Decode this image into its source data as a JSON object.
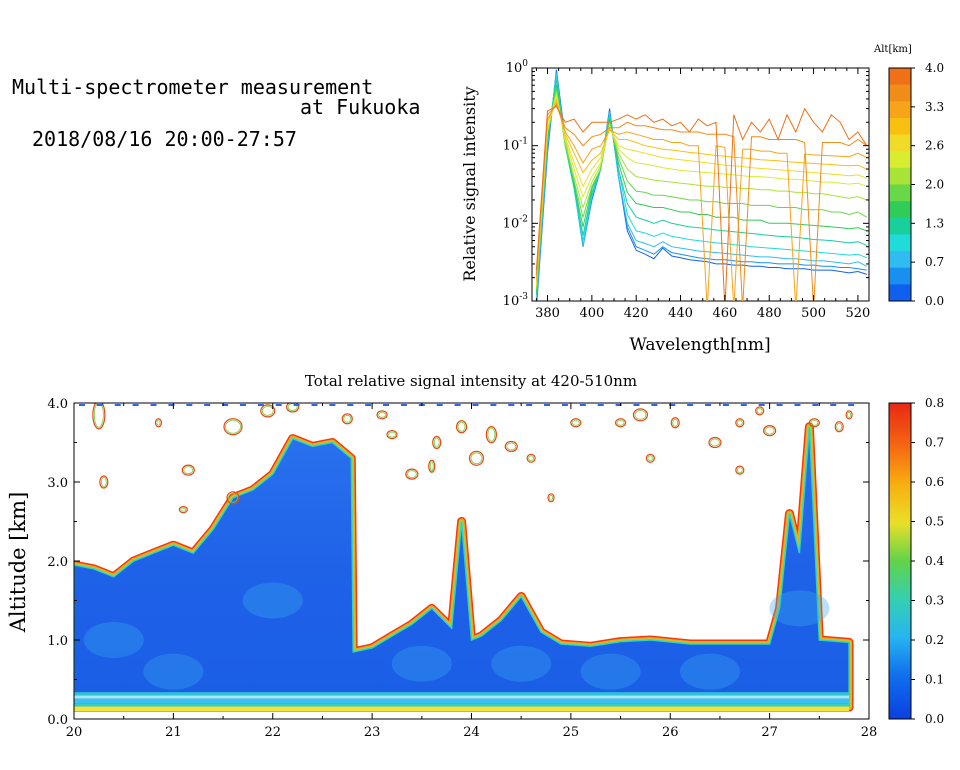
{
  "header": {
    "title_line1": "Multi-spectrometer measurement",
    "title_line2": "at Fukuoka",
    "date_range": "2018/08/16 20:00-27:57"
  },
  "chart_data": [
    {
      "type": "line",
      "title": "",
      "xlabel": "Wavelength[nm]",
      "ylabel": "Relative signal intensity",
      "xlim": [
        373,
        525
      ],
      "ylim": [
        0.001,
        1
      ],
      "yscale": "log",
      "x_ticks": [
        "380",
        "400",
        "420",
        "440",
        "460",
        "480",
        "500",
        "520"
      ],
      "x_tick_values": [
        380,
        400,
        420,
        440,
        460,
        480,
        500,
        520
      ],
      "y_ticks": [
        {
          "mantissa": "10",
          "exp": "-3",
          "value": 0.001
        },
        {
          "mantissa": "10",
          "exp": "-2",
          "value": 0.01
        },
        {
          "mantissa": "10",
          "exp": "-1",
          "value": 0.1
        },
        {
          "mantissa": "10",
          "exp": "0",
          "value": 1
        }
      ],
      "colorbar": {
        "title": "Alt[km]",
        "labels": [
          "4.0",
          "3.3",
          "2.6",
          "2.0",
          "1.3",
          "0.7",
          "0.0"
        ],
        "colors": [
          "#f07018",
          "#f08c18",
          "#f8a418",
          "#f8c010",
          "#f0dc28",
          "#d8ec30",
          "#a8e438",
          "#68d848",
          "#30cc58",
          "#18d09c",
          "#20dcd8",
          "#30bcf0",
          "#1890f0",
          "#1060f0"
        ]
      },
      "x": [
        375,
        380,
        384,
        388,
        392,
        396,
        400,
        404,
        408,
        412,
        416,
        420,
        424,
        428,
        432,
        436,
        440,
        444,
        448,
        452,
        456,
        460,
        464,
        468,
        472,
        476,
        480,
        484,
        488,
        492,
        496,
        500,
        504,
        508,
        512,
        516,
        520,
        524
      ],
      "series": [
        {
          "altitude": 0.2,
          "color": "#1060f0",
          "values": [
            0.0008,
            0.08,
            0.95,
            0.12,
            0.03,
            0.005,
            0.02,
            0.05,
            0.3,
            0.04,
            0.008,
            0.0045,
            0.004,
            0.0035,
            0.0048,
            0.0038,
            0.0036,
            0.0034,
            0.0033,
            0.0032,
            0.003,
            0.003,
            0.0029,
            0.0029,
            0.0028,
            0.0028,
            0.0027,
            0.0027,
            0.0026,
            0.0026,
            0.0026,
            0.0025,
            0.0025,
            0.0025,
            0.0024,
            0.0023,
            0.0024,
            0.0022
          ]
        },
        {
          "altitude": 0.5,
          "color": "#1890f0",
          "values": [
            0.0009,
            0.09,
            0.9,
            0.11,
            0.03,
            0.005,
            0.021,
            0.05,
            0.28,
            0.04,
            0.009,
            0.005,
            0.0045,
            0.004,
            0.005,
            0.0042,
            0.004,
            0.0038,
            0.0036,
            0.0035,
            0.0034,
            0.0034,
            0.0033,
            0.0032,
            0.0032,
            0.0031,
            0.0031,
            0.003,
            0.003,
            0.003,
            0.0029,
            0.0029,
            0.0028,
            0.0028,
            0.0027,
            0.0027,
            0.0026,
            0.0025
          ]
        },
        {
          "altitude": 0.8,
          "color": "#30bcf0",
          "values": [
            0.001,
            0.1,
            0.85,
            0.1,
            0.028,
            0.005,
            0.022,
            0.05,
            0.27,
            0.04,
            0.01,
            0.006,
            0.0055,
            0.005,
            0.0058,
            0.005,
            0.0048,
            0.0046,
            0.0044,
            0.0043,
            0.0042,
            0.0041,
            0.004,
            0.0039,
            0.0038,
            0.0037,
            0.0037,
            0.0036,
            0.0035,
            0.0035,
            0.0034,
            0.0033,
            0.0033,
            0.0032,
            0.0031,
            0.003,
            0.0032,
            0.0028
          ]
        },
        {
          "altitude": 1.1,
          "color": "#20dcd8",
          "values": [
            0.001,
            0.11,
            0.8,
            0.1,
            0.028,
            0.006,
            0.023,
            0.05,
            0.26,
            0.05,
            0.013,
            0.008,
            0.0075,
            0.0068,
            0.0075,
            0.0068,
            0.0065,
            0.0062,
            0.006,
            0.0058,
            0.0056,
            0.0055,
            0.0053,
            0.0052,
            0.005,
            0.0049,
            0.0048,
            0.0047,
            0.0046,
            0.0045,
            0.0044,
            0.0043,
            0.0042,
            0.0041,
            0.004,
            0.0039,
            0.004,
            0.0036
          ]
        },
        {
          "altitude": 1.4,
          "color": "#18d09c",
          "values": [
            0.0012,
            0.12,
            0.7,
            0.1,
            0.03,
            0.007,
            0.025,
            0.05,
            0.24,
            0.05,
            0.018,
            0.012,
            0.011,
            0.01,
            0.011,
            0.01,
            0.0095,
            0.009,
            0.0088,
            0.0085,
            0.0082,
            0.008,
            0.0078,
            0.0076,
            0.0074,
            0.0072,
            0.007,
            0.0068,
            0.0067,
            0.0066,
            0.0064,
            0.0062,
            0.0061,
            0.006,
            0.0058,
            0.0056,
            0.0058,
            0.0052
          ]
        },
        {
          "altitude": 1.7,
          "color": "#30cc58",
          "values": [
            0.0013,
            0.13,
            0.6,
            0.1,
            0.032,
            0.009,
            0.028,
            0.05,
            0.22,
            0.06,
            0.025,
            0.018,
            0.017,
            0.016,
            0.016,
            0.015,
            0.014,
            0.014,
            0.013,
            0.013,
            0.012,
            0.012,
            0.012,
            0.011,
            0.011,
            0.011,
            0.01,
            0.01,
            0.01,
            0.0098,
            0.0096,
            0.0094,
            0.0092,
            0.009,
            0.0088,
            0.0085,
            0.0088,
            0.008
          ]
        },
        {
          "altitude": 2.0,
          "color": "#68d848",
          "values": [
            0.0014,
            0.14,
            0.55,
            0.1,
            0.035,
            0.012,
            0.03,
            0.05,
            0.2,
            0.07,
            0.035,
            0.026,
            0.025,
            0.023,
            0.023,
            0.022,
            0.021,
            0.02,
            0.02,
            0.019,
            0.019,
            0.018,
            0.018,
            0.018,
            0.017,
            0.017,
            0.017,
            0.016,
            0.016,
            0.016,
            0.015,
            0.015,
            0.015,
            0.014,
            0.014,
            0.013,
            0.014,
            0.012
          ]
        },
        {
          "altitude": 2.3,
          "color": "#a8e438",
          "values": [
            0.0015,
            0.15,
            0.5,
            0.11,
            0.04,
            0.016,
            0.034,
            0.055,
            0.19,
            0.08,
            0.05,
            0.04,
            0.038,
            0.036,
            0.035,
            0.034,
            0.033,
            0.032,
            0.031,
            0.03,
            0.03,
            0.029,
            0.029,
            0.028,
            0.028,
            0.027,
            0.027,
            0.026,
            0.026,
            0.025,
            0.025,
            0.024,
            0.024,
            0.023,
            0.022,
            0.021,
            0.022,
            0.02
          ]
        },
        {
          "altitude": 2.6,
          "color": "#d8ec30",
          "values": [
            0.0016,
            0.16,
            0.45,
            0.12,
            0.05,
            0.022,
            0.04,
            0.06,
            0.18,
            0.09,
            0.07,
            0.06,
            0.058,
            0.055,
            0.052,
            0.05,
            0.048,
            0.047,
            0.046,
            0.045,
            0.044,
            0.043,
            0.042,
            0.041,
            0.04,
            0.04,
            0.039,
            0.038,
            0.037,
            0.037,
            0.036,
            0.035,
            0.034,
            0.034,
            0.033,
            0.032,
            0.033,
            0.03
          ]
        },
        {
          "altitude": 2.9,
          "color": "#f0dc28",
          "values": [
            0.0017,
            0.17,
            0.4,
            0.13,
            0.06,
            0.03,
            0.05,
            0.07,
            0.17,
            0.1,
            0.09,
            0.085,
            0.08,
            0.075,
            0.07,
            0.068,
            0.066,
            0.064,
            0.062,
            0.06,
            0.058,
            0.056,
            0.055,
            0.054,
            0.052,
            0.051,
            0.05,
            0.049,
            0.048,
            0.047,
            0.046,
            0.045,
            0.044,
            0.043,
            0.042,
            0.041,
            0.042,
            0.038
          ]
        },
        {
          "altitude": 3.2,
          "color": "#f8c010",
          "values": [
            0.0018,
            0.2,
            0.38,
            0.14,
            0.08,
            0.045,
            0.065,
            0.08,
            0.16,
            0.12,
            0.12,
            0.11,
            0.1,
            0.095,
            0.09,
            0.088,
            0.085,
            0.082,
            0.08,
            0.077,
            0.075,
            0.073,
            0.071,
            0.07,
            0.068,
            0.066,
            0.065,
            0.064,
            0.062,
            0.061,
            0.06,
            0.059,
            0.058,
            0.057,
            0.056,
            0.055,
            0.056,
            0.05
          ]
        },
        {
          "altitude": 3.5,
          "color": "#f8a418",
          "values": [
            0.002,
            0.22,
            0.35,
            0.15,
            0.1,
            0.06,
            0.09,
            0.1,
            0.16,
            0.14,
            0.15,
            0.14,
            0.13,
            0.12,
            0.12,
            0.11,
            0.11,
            0.1,
            0.1,
            0.0008,
            0.1,
            0.095,
            0.0008,
            0.09,
            0.09,
            0.085,
            0.085,
            0.08,
            0.08,
            0.0008,
            0.078,
            0.076,
            0.075,
            0.074,
            0.073,
            0.072,
            0.08,
            0.07
          ]
        },
        {
          "altitude": 3.8,
          "color": "#f08c18",
          "values": [
            0.0022,
            0.25,
            0.33,
            0.17,
            0.14,
            0.1,
            0.13,
            0.14,
            0.17,
            0.17,
            0.2,
            0.18,
            0.18,
            0.17,
            0.16,
            0.16,
            0.15,
            0.15,
            0.15,
            0.14,
            0.14,
            0.14,
            0.13,
            0.0008,
            0.13,
            0.13,
            0.12,
            0.12,
            0.12,
            0.12,
            0.11,
            0.0008,
            0.11,
            0.11,
            0.11,
            0.1,
            0.12,
            0.1
          ]
        },
        {
          "altitude": 4.0,
          "color": "#f07018",
          "values": [
            0.0025,
            0.28,
            0.32,
            0.2,
            0.22,
            0.15,
            0.2,
            0.2,
            0.2,
            0.22,
            0.25,
            0.22,
            0.25,
            0.2,
            0.22,
            0.18,
            0.2,
            0.15,
            0.22,
            0.18,
            0.2,
            0.0008,
            0.25,
            0.12,
            0.2,
            0.15,
            0.22,
            0.12,
            0.25,
            0.15,
            0.3,
            0.2,
            0.15,
            0.25,
            0.2,
            0.12,
            0.15,
            0.1
          ]
        }
      ]
    },
    {
      "type": "heatmap",
      "title": "Total relative signal intensity at 420-510nm",
      "xlabel": "",
      "ylabel": "Altitude [km]",
      "xlim": [
        20,
        28
      ],
      "ylim": [
        0,
        4
      ],
      "x_ticks": [
        "20",
        "21",
        "22",
        "23",
        "24",
        "25",
        "26",
        "27",
        "28"
      ],
      "y_ticks": [
        "0.0",
        "1.0",
        "2.0",
        "3.0",
        "4.0"
      ],
      "data_end_hour": 27.8,
      "colorbar": {
        "labels": [
          "0.8",
          "0.7",
          "0.6",
          "0.5",
          "0.4",
          "0.3",
          "0.2",
          "0.1",
          "0.0"
        ],
        "range": [
          0,
          0.8
        ]
      },
      "cloud_base_profile": {
        "hours": [
          20.0,
          20.2,
          20.4,
          20.6,
          20.8,
          21.0,
          21.2,
          21.4,
          21.6,
          21.8,
          22.0,
          22.2,
          22.4,
          22.6,
          22.79,
          22.81,
          23.0,
          23.2,
          23.4,
          23.6,
          23.8,
          23.9,
          24.0,
          24.1,
          24.3,
          24.5,
          24.7,
          24.9,
          25.2,
          25.5,
          25.8,
          26.2,
          26.6,
          27.0,
          27.1,
          27.2,
          27.3,
          27.4,
          27.5,
          27.8
        ],
        "altitudes_km": [
          1.95,
          1.9,
          1.8,
          2.0,
          2.1,
          2.2,
          2.1,
          2.4,
          2.8,
          2.9,
          3.1,
          3.55,
          3.45,
          3.5,
          3.3,
          0.85,
          0.9,
          1.05,
          1.2,
          1.4,
          1.15,
          2.5,
          1.0,
          1.05,
          1.25,
          1.55,
          1.1,
          0.95,
          0.92,
          0.98,
          1.0,
          0.95,
          0.95,
          0.95,
          1.4,
          2.6,
          2.1,
          3.7,
          1.0,
          0.97
        ]
      }
    }
  ]
}
